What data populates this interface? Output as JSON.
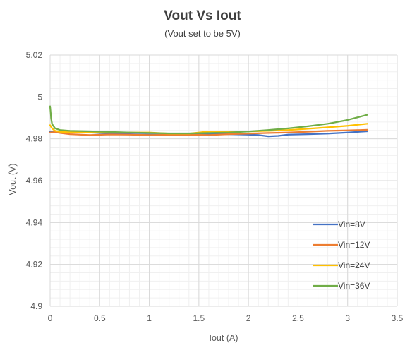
{
  "chart_data": {
    "type": "line",
    "title": "Vout Vs Iout",
    "subtitle": "(Vout set to be 5V)",
    "xlabel": "Iout (A)",
    "ylabel": "Vout (V)",
    "xlim": [
      0,
      3.5
    ],
    "ylim": [
      4.9,
      5.02
    ],
    "x_ticks": [
      0,
      0.5,
      1,
      1.5,
      2,
      2.5,
      3,
      3.5
    ],
    "x_tick_labels": [
      "0",
      "0.5",
      "1",
      "1.5",
      "2",
      "2.5",
      "3",
      "3.5"
    ],
    "y_ticks": [
      4.9,
      4.92,
      4.94,
      4.96,
      4.98,
      5,
      5.02
    ],
    "y_tick_labels": [
      "4.9",
      "4.92",
      "4.94",
      "4.96",
      "4.98",
      "5",
      "5.02"
    ],
    "y_minor_step": 0.004,
    "x_minor_step": 0.1,
    "grid": true,
    "legend_position": "bottom-right",
    "series": [
      {
        "name": "Vin=8V",
        "color": "#4472C4",
        "x": [
          0,
          0.05,
          0.1,
          0.2,
          0.4,
          0.6,
          0.8,
          1.0,
          1.2,
          1.4,
          1.6,
          1.8,
          2.0,
          2.1,
          2.2,
          2.3,
          2.4,
          2.6,
          2.8,
          3.0,
          3.2
        ],
        "y": [
          4.9835,
          4.9832,
          4.9832,
          4.9831,
          4.983,
          4.9826,
          4.9822,
          4.982,
          4.982,
          4.9822,
          4.9822,
          4.9822,
          4.982,
          4.9818,
          4.9812,
          4.9814,
          4.982,
          4.9822,
          4.9825,
          4.983,
          4.9836
        ]
      },
      {
        "name": "Vin=12V",
        "color": "#ED7D31",
        "x": [
          0,
          0.05,
          0.1,
          0.2,
          0.4,
          0.6,
          0.8,
          1.0,
          1.2,
          1.4,
          1.6,
          1.8,
          2.0,
          2.2,
          2.4,
          2.6,
          2.8,
          3.0,
          3.2
        ],
        "y": [
          4.983,
          4.9832,
          4.9828,
          4.9822,
          4.9818,
          4.9821,
          4.982,
          4.9818,
          4.9819,
          4.982,
          4.9818,
          4.9822,
          4.9825,
          4.9828,
          4.983,
          4.9834,
          4.9838,
          4.984,
          4.9843
        ]
      },
      {
        "name": "Vin=24V",
        "color": "#FFC000",
        "x": [
          0,
          0.02,
          0.05,
          0.1,
          0.2,
          0.4,
          0.6,
          0.8,
          1.0,
          1.2,
          1.4,
          1.6,
          1.8,
          2.0,
          2.2,
          2.4,
          2.6,
          2.8,
          3.0,
          3.2
        ],
        "y": [
          4.9865,
          4.985,
          4.9838,
          4.9834,
          4.9831,
          4.983,
          4.983,
          4.983,
          4.983,
          4.9825,
          4.9825,
          4.9835,
          4.9835,
          4.9835,
          4.9838,
          4.9842,
          4.9848,
          4.9855,
          4.9862,
          4.9872
        ]
      },
      {
        "name": "Vin=36V",
        "color": "#70AD47",
        "x": [
          0,
          0.01,
          0.02,
          0.05,
          0.1,
          0.2,
          0.4,
          0.6,
          0.8,
          1.0,
          1.2,
          1.4,
          1.6,
          1.8,
          2.0,
          2.2,
          2.4,
          2.6,
          2.8,
          3.0,
          3.2
        ],
        "y": [
          4.9955,
          4.99,
          4.987,
          4.985,
          4.9842,
          4.9838,
          4.9836,
          4.9833,
          4.983,
          4.9828,
          4.9826,
          4.9826,
          4.9828,
          4.983,
          4.9835,
          4.9842,
          4.985,
          4.986,
          4.9872,
          4.989,
          4.9915
        ]
      }
    ]
  }
}
